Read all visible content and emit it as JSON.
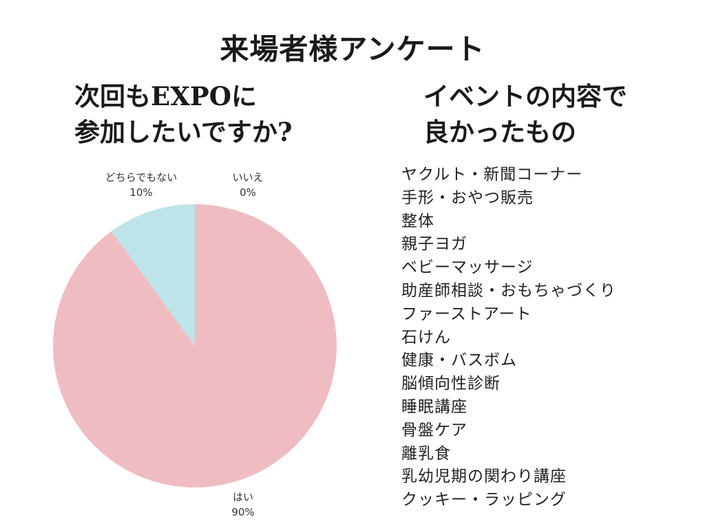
{
  "title": "来場者様アンケート",
  "left_question": {
    "line1": "次回もEXPOに",
    "line2": "参加したいですか?"
  },
  "right_question": {
    "line1": "イベントの内容で",
    "line2": "良かったもの"
  },
  "colors": {
    "hai": "#efbcc2",
    "dochira": "#bde4e8",
    "iie": "#f5d08a"
  },
  "chart_data": {
    "type": "pie",
    "title": "",
    "slices": [
      {
        "label": "はい",
        "value": 90,
        "display": "90%"
      },
      {
        "label": "どちらでもない",
        "value": 10,
        "display": "10%"
      },
      {
        "label": "いいえ",
        "value": 0,
        "display": "0%"
      }
    ]
  },
  "events": [
    "ヤクルト・新聞コーナー",
    "手形・おやつ販売",
    "整体",
    "親子ヨガ",
    "ベビーマッサージ",
    "助産師相談・おもちゃづくり",
    "ファーストアート",
    "石けん",
    "健康・バスボム",
    "脳傾向性診断",
    "睡眠講座",
    "骨盤ケア",
    "離乳食",
    "乳幼児期の関わり講座",
    "クッキー・ラッピング"
  ]
}
